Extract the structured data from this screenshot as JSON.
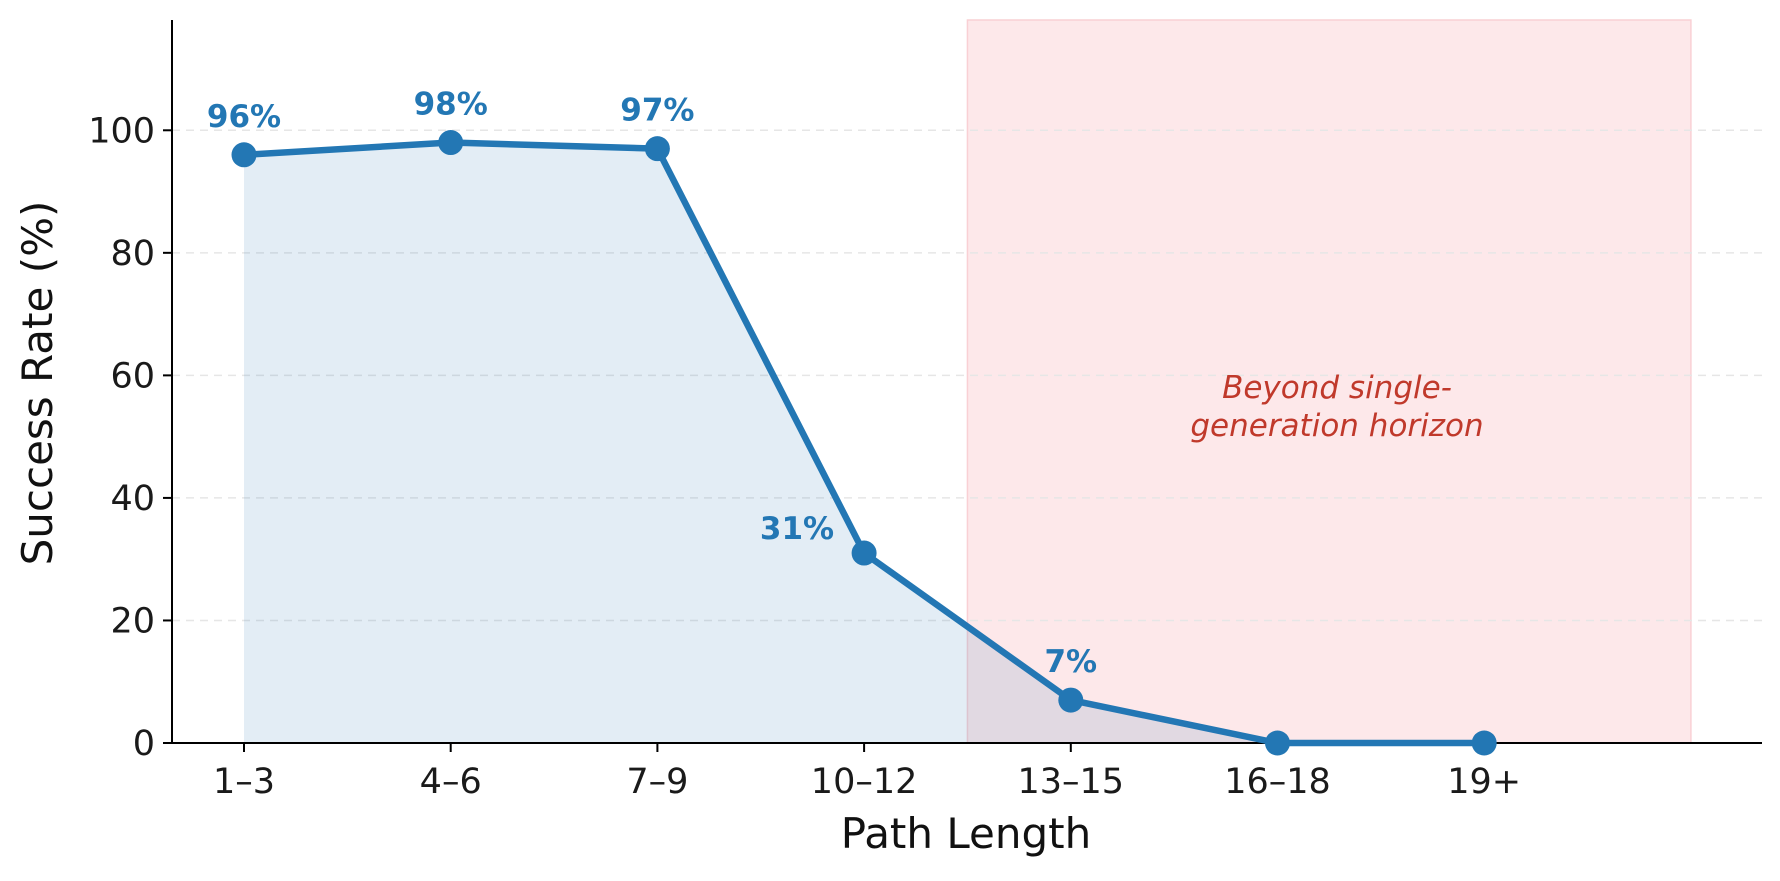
{
  "chart_data": {
    "type": "line",
    "xlabel": "Path Length",
    "ylabel": "Success Rate (%)",
    "categories": [
      "1–3",
      "4–6",
      "7–9",
      "10–12",
      "13–15",
      "16–18",
      "19+"
    ],
    "values": [
      96,
      98,
      97,
      31,
      7,
      0,
      0
    ],
    "data_labels": [
      "96%",
      "98%",
      "97%",
      "31%",
      "7%",
      "",
      ""
    ],
    "ylim": [
      0,
      118
    ],
    "yticks": [
      0,
      20,
      40,
      60,
      80,
      100
    ],
    "grid": "horizontal dashed",
    "area_fill": true,
    "shaded_region": {
      "x_start": 3.5,
      "x_end": 7.0,
      "label": "Beyond single-\ngeneration horizon",
      "color": "#fde8ea"
    },
    "colors": {
      "line": "#2377b4",
      "area": "#e3eef7",
      "annotation": "#c0392b",
      "axis": "#000000",
      "grid": "#e6e6e6"
    }
  }
}
